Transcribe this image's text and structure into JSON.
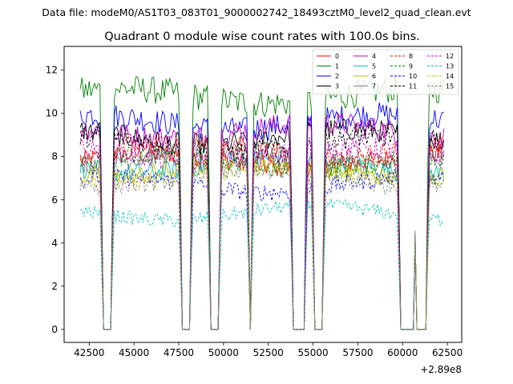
{
  "chart_data": {
    "type": "line",
    "suptitle": "Data file: modeM0/AS1T03_083T01_9000002742_18493cztM0_level2_quad_clean.evt",
    "title": "Quadrant 0 module wise count rates with 100.0s bins.",
    "xlabel": "",
    "ylabel": "",
    "x_offset_label": "+2.89e8",
    "xlim": [
      41100,
      63300
    ],
    "ylim": [
      -0.6,
      13.1
    ],
    "xticks": [
      42500,
      45000,
      47500,
      50000,
      52500,
      55000,
      57500,
      60000,
      62500
    ],
    "xtick_labels": [
      "42500",
      "45000",
      "47500",
      "50000",
      "52500",
      "55000",
      "57500",
      "60000",
      "62500"
    ],
    "yticks": [
      0,
      2,
      4,
      6,
      8,
      10,
      12
    ],
    "ytick_labels": [
      "0",
      "2",
      "4",
      "6",
      "8",
      "10",
      "12"
    ],
    "grid": false,
    "legend_position": "top-right",
    "bin_seconds": 100,
    "x_start": 42000,
    "x_end": 62300,
    "gaps": [
      [
        43300,
        43700
      ],
      [
        47700,
        48100
      ],
      [
        49300,
        49700
      ],
      [
        51500,
        51500
      ],
      [
        53900,
        54500
      ],
      [
        55100,
        55500
      ],
      [
        59900,
        60600
      ],
      [
        60800,
        61300
      ]
    ],
    "series": [
      {
        "name": "0",
        "color": "#ff0000",
        "dash": "solid",
        "level": 7.8
      },
      {
        "name": "1",
        "color": "#008000",
        "dash": "solid",
        "level": 10.8
      },
      {
        "name": "2",
        "color": "#0000ff",
        "dash": "solid",
        "level": 9.6
      },
      {
        "name": "3",
        "color": "#000000",
        "dash": "solid",
        "level": 8.9
      },
      {
        "name": "4",
        "color": "#c000c0",
        "dash": "solid",
        "level": 9.2
      },
      {
        "name": "5",
        "color": "#00bfbf",
        "dash": "solid",
        "level": 7.6
      },
      {
        "name": "6",
        "color": "#bfbf00",
        "dash": "solid",
        "level": 7.4
      },
      {
        "name": "7",
        "color": "#808080",
        "dash": "solid",
        "level": 8.0
      },
      {
        "name": "8",
        "color": "#ff0000",
        "dash": "dashed",
        "level": 8.3
      },
      {
        "name": "9",
        "color": "#008000",
        "dash": "dashed",
        "level": 7.7
      },
      {
        "name": "10",
        "color": "#0000ff",
        "dash": "dashed",
        "level": 6.7
      },
      {
        "name": "11",
        "color": "#000000",
        "dash": "dashed",
        "level": 8.6
      },
      {
        "name": "12",
        "color": "#c000c0",
        "dash": "dashed",
        "level": 8.1
      },
      {
        "name": "13",
        "color": "#00bfbf",
        "dash": "dashed",
        "level": 5.4
      },
      {
        "name": "14",
        "color": "#bfbf00",
        "dash": "dashed",
        "level": 7.2
      },
      {
        "name": "15",
        "color": "#808080",
        "dash": "dashed",
        "level": 7.0
      }
    ]
  }
}
